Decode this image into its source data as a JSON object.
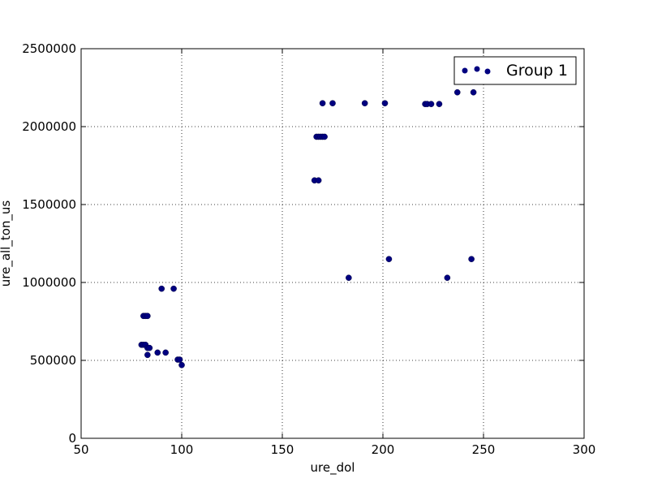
{
  "chart_data": {
    "type": "scatter",
    "xlabel": "ure_dol",
    "ylabel": "ure_all_ton_us",
    "xlim": [
      50,
      300
    ],
    "ylim": [
      0,
      2500000
    ],
    "xticks": [
      "50",
      "100",
      "150",
      "200",
      "250",
      "300"
    ],
    "yticks": [
      "0",
      "500000",
      "1000000",
      "1500000",
      "2000000",
      "2500000"
    ],
    "grid": true,
    "legend": {
      "position": "top-right",
      "entries": [
        "Group 1"
      ]
    },
    "series": [
      {
        "name": "Group 1",
        "color": "#000080",
        "points": [
          [
            170,
            2150000
          ],
          [
            175,
            2150000
          ],
          [
            191,
            2150000
          ],
          [
            201,
            2150000
          ],
          [
            221,
            2145000
          ],
          [
            222,
            2145000
          ],
          [
            224,
            2145000
          ],
          [
            228,
            2145000
          ],
          [
            237,
            2220000
          ],
          [
            245,
            2220000
          ],
          [
            167,
            1935000
          ],
          [
            168,
            1935000
          ],
          [
            169,
            1935000
          ],
          [
            170,
            1935000
          ],
          [
            171,
            1935000
          ],
          [
            166,
            1655000
          ],
          [
            168,
            1655000
          ],
          [
            203,
            1150000
          ],
          [
            244,
            1150000
          ],
          [
            183,
            1030000
          ],
          [
            232,
            1030000
          ],
          [
            90,
            960000
          ],
          [
            96,
            960000
          ],
          [
            81,
            785000
          ],
          [
            82,
            785000
          ],
          [
            83,
            785000
          ],
          [
            80,
            600000
          ],
          [
            81,
            600000
          ],
          [
            82,
            600000
          ],
          [
            83,
            580000
          ],
          [
            84,
            580000
          ],
          [
            88,
            550000
          ],
          [
            92,
            550000
          ],
          [
            83,
            535000
          ],
          [
            98,
            505000
          ],
          [
            99,
            505000
          ],
          [
            100,
            470000
          ]
        ]
      }
    ]
  }
}
